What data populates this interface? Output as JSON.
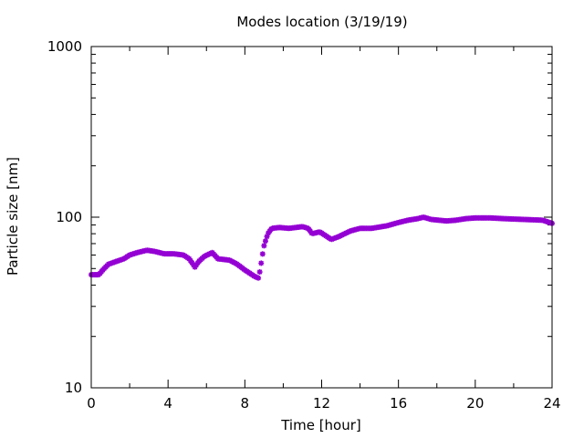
{
  "chart_data": {
    "type": "scatter",
    "title": "Modes location (3/19/19)",
    "xlabel": "Time [hour]",
    "ylabel": "Particle size [nm]",
    "x_range": [
      0,
      24
    ],
    "y_range": [
      10,
      1000
    ],
    "y_scale": "log",
    "grid": false,
    "x_ticks": [
      0,
      4,
      8,
      12,
      16,
      20,
      24
    ],
    "x_tick_labels": [
      "0",
      "4",
      "8",
      "12",
      "16",
      "20",
      "24"
    ],
    "y_ticks": [
      10,
      100,
      1000
    ],
    "y_tick_labels": [
      "10",
      "100",
      "1000"
    ],
    "marker_color": "#9400d3",
    "marker": "asterisk",
    "profile": [
      [
        0.0,
        46
      ],
      [
        0.4,
        46
      ],
      [
        0.6,
        49
      ],
      [
        0.9,
        53
      ],
      [
        1.3,
        55
      ],
      [
        1.7,
        57
      ],
      [
        2.0,
        60
      ],
      [
        2.4,
        62
      ],
      [
        2.9,
        64
      ],
      [
        3.3,
        63
      ],
      [
        3.8,
        61
      ],
      [
        4.3,
        61
      ],
      [
        4.8,
        60
      ],
      [
        5.1,
        57
      ],
      [
        5.4,
        51
      ],
      [
        5.6,
        55
      ],
      [
        5.9,
        59
      ],
      [
        6.3,
        62
      ],
      [
        6.6,
        57
      ],
      [
        7.2,
        56
      ],
      [
        7.6,
        53
      ],
      [
        8.0,
        49
      ],
      [
        8.5,
        45
      ],
      [
        8.7,
        44
      ],
      [
        8.8,
        49
      ],
      [
        9.0,
        68
      ],
      [
        9.2,
        80
      ],
      [
        9.4,
        86
      ],
      [
        9.8,
        87
      ],
      [
        10.3,
        86
      ],
      [
        11.0,
        88
      ],
      [
        11.3,
        86
      ],
      [
        11.5,
        80
      ],
      [
        11.9,
        82
      ],
      [
        12.2,
        78
      ],
      [
        12.5,
        74
      ],
      [
        12.9,
        77
      ],
      [
        13.5,
        83
      ],
      [
        14.0,
        86
      ],
      [
        14.6,
        86
      ],
      [
        15.4,
        89
      ],
      [
        16.0,
        93
      ],
      [
        16.5,
        96
      ],
      [
        17.0,
        98
      ],
      [
        17.3,
        100
      ],
      [
        17.7,
        97
      ],
      [
        18.5,
        95
      ],
      [
        19.0,
        96
      ],
      [
        19.5,
        98
      ],
      [
        20.0,
        99
      ],
      [
        20.8,
        99
      ],
      [
        21.5,
        98
      ],
      [
        22.5,
        97
      ],
      [
        23.5,
        96
      ],
      [
        24.0,
        92
      ]
    ]
  }
}
